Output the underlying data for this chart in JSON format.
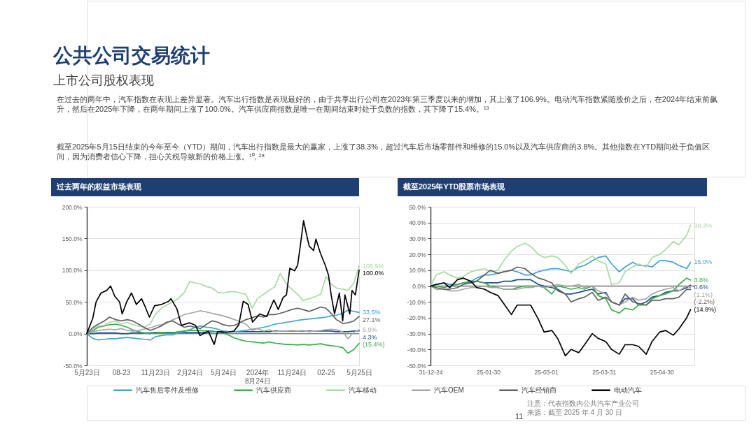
{
  "chart_data": [
    {
      "type": "other",
      "title": "公共公司交易统计",
      "subtitle": "上市公司股权表现",
      "annotations": [
        "在过去的两年中，汽车指数在表现上差异显著。汽车出行指数是表现最好的，由于共享出行公司在2023年第三季度以来的增加，其上涨了106.9%。电动汽车指数紧随股价之后，在2024年结束前飙升，然后在2025年下降，在两年期间上涨了100.0%。汽车供应商指数是唯一在期间结束时处于负数的指数，其下降了15.4%。¹³",
        "截至2025年5月15日结束的今年至今（YTD）期间，汽车出行指数是最大的赢家，上涨了38.3%，超过汽车后市场零部件和维修的15.0%以及汽车供应商的3.8%。其他指数在YTD期间处于负值区间，因为消费者信心下降，担心关税导致新的价格上涨。¹⁰, ²⁸"
      ]
    },
    {
      "type": "line",
      "title": "过去两年的权益市场表现",
      "legend": "bottom",
      "grid": "y",
      "marker": "none",
      "line_style": "solid",
      "x": [
        "2023-05-15",
        "2023-06-01",
        "2023-06-15",
        "2023-07-01",
        "2023-07-15",
        "2023-08-01",
        "2023-08-15",
        "2023-09-01",
        "2023-09-15",
        "2023-10-01",
        "2023-10-15",
        "2023-11-01",
        "2023-11-15",
        "2023-12-01",
        "2023-12-15",
        "2024-01-01",
        "2024-01-15",
        "2024-02-01",
        "2024-02-15",
        "2024-03-01",
        "2024-03-15",
        "2024-04-01",
        "2024-04-15",
        "2024-05-01",
        "2024-05-15",
        "2024-06-01",
        "2024-06-15",
        "2024-07-01",
        "2024-07-15",
        "2024-08-01",
        "2024-08-15",
        "2024-09-01",
        "2024-09-15",
        "2024-10-01",
        "2024-10-15",
        "2024-11-01",
        "2024-11-15",
        "2024-12-01",
        "2024-12-15",
        "2025-01-01",
        "2025-01-15",
        "2025-02-01",
        "2025-02-15",
        "2025-03-01",
        "2025-03-15",
        "2025-04-01",
        "2025-04-15",
        "2025-05-01",
        "2025-05-15"
      ],
      "xlim": [
        "2023-05-15",
        "2025-05-15"
      ],
      "xticks": [
        {
          "value": "2023-05-15",
          "label": "5月23日"
        },
        {
          "value": "2023-08-15",
          "label": "08-23"
        },
        {
          "value": "2023-11-15",
          "label": "11月23日"
        },
        {
          "value": "2024-02-15",
          "label": "2月24日"
        },
        {
          "value": "2024-05-15",
          "label": "5月24日"
        },
        {
          "value": "2024-08-15",
          "label": "2024年8月24日"
        },
        {
          "value": "2024-11-15",
          "label": "11月24日"
        },
        {
          "value": "2025-02-15",
          "label": "02-25"
        },
        {
          "value": "2025-05-15",
          "label": "5月25日"
        }
      ],
      "ylim": [
        -50,
        200
      ],
      "yticks": [
        {
          "value": -50,
          "label": "-50.0%"
        },
        {
          "value": 0,
          "label": "0.0%"
        },
        {
          "value": 50,
          "label": "50.0%"
        },
        {
          "value": 100,
          "label": "100.0%"
        },
        {
          "value": 150,
          "label": "150.0%"
        },
        {
          "value": 200,
          "label": "200.0%"
        }
      ],
      "ref_lines": [
        {
          "axis": "y",
          "value": 0,
          "color": "#808080"
        }
      ],
      "series": [
        {
          "color": "#1f4e8c",
          "values": [
            0,
            0,
            1,
            1,
            1,
            1,
            0,
            0,
            1,
            1,
            1,
            1,
            2,
            2,
            2,
            2,
            2,
            2,
            2,
            2,
            2,
            2,
            3,
            3,
            3,
            3,
            3,
            3,
            3,
            3,
            3,
            3,
            3,
            4,
            4,
            4,
            4,
            4,
            4,
            4,
            4,
            4,
            4,
            4,
            3,
            3,
            3,
            4,
            4.3
          ],
          "value_labels": [
            null,
            null,
            null,
            null,
            null,
            null,
            null,
            null,
            null,
            null,
            null,
            null,
            null,
            null,
            null,
            null,
            null,
            null,
            null,
            null,
            null,
            null,
            null,
            null,
            null,
            null,
            null,
            null,
            null,
            null,
            null,
            null,
            null,
            null,
            null,
            null,
            null,
            null,
            null,
            null,
            null,
            null,
            null,
            null,
            null,
            null,
            null,
            null,
            "4.3%"
          ]
        },
        {
          "name": "汽车售后零件及维修",
          "color": "#41a1d9",
          "values": [
            0,
            -8,
            -10,
            -9,
            -8,
            -8,
            -7,
            -6,
            -7,
            -8,
            -9,
            -10,
            -5,
            -3,
            -2,
            -2,
            1,
            4,
            6,
            10,
            12,
            10,
            9,
            7,
            4,
            3,
            3,
            4,
            5,
            7,
            8,
            10,
            12,
            15,
            16,
            18,
            19,
            21,
            22,
            23,
            24,
            25,
            26,
            28,
            29,
            32,
            37,
            35,
            33.5
          ],
          "value_labels": [
            null,
            null,
            null,
            null,
            null,
            null,
            null,
            null,
            null,
            null,
            null,
            null,
            null,
            null,
            null,
            null,
            null,
            null,
            null,
            null,
            null,
            null,
            null,
            null,
            null,
            null,
            null,
            null,
            null,
            null,
            null,
            null,
            null,
            null,
            null,
            null,
            null,
            null,
            null,
            null,
            null,
            null,
            null,
            null,
            null,
            null,
            null,
            null,
            "33.5%"
          ]
        },
        {
          "name": "汽车供应商",
          "color": "#3cb04a",
          "values": [
            0,
            5,
            10,
            12,
            14,
            15,
            13,
            10,
            6,
            3,
            1,
            0,
            1,
            2,
            1,
            1,
            3,
            4,
            5,
            5,
            5,
            4,
            4,
            3,
            1,
            -3,
            -7,
            -10,
            -12,
            -13,
            -14,
            -15,
            -13,
            -15,
            -16,
            -17,
            -17,
            -18,
            -17,
            -18,
            -17,
            -16,
            -18,
            -19,
            -20,
            -22,
            -31,
            -25,
            -15.4
          ],
          "value_labels": [
            null,
            null,
            null,
            null,
            null,
            null,
            null,
            null,
            null,
            null,
            null,
            null,
            null,
            null,
            null,
            null,
            null,
            null,
            null,
            null,
            null,
            null,
            null,
            null,
            null,
            null,
            null,
            null,
            null,
            null,
            null,
            null,
            null,
            null,
            null,
            null,
            null,
            null,
            null,
            null,
            null,
            null,
            null,
            null,
            null,
            null,
            null,
            null,
            "(15.4%)"
          ]
        },
        {
          "name": "汽车移动",
          "color": "#a8dba4",
          "values": [
            0,
            8,
            12,
            13,
            18,
            20,
            15,
            18,
            14,
            12,
            10,
            15,
            30,
            40,
            45,
            50,
            55,
            65,
            82,
            80,
            78,
            74,
            72,
            65,
            64,
            66,
            66,
            64,
            62,
            40,
            55,
            62,
            68,
            74,
            95,
            78,
            70,
            62,
            52,
            55,
            58,
            62,
            90,
            78,
            72,
            70,
            68,
            80,
            106.9
          ],
          "value_labels": [
            null,
            null,
            null,
            null,
            null,
            null,
            null,
            null,
            null,
            null,
            null,
            null,
            null,
            null,
            null,
            null,
            null,
            null,
            null,
            null,
            null,
            null,
            null,
            null,
            null,
            null,
            null,
            null,
            null,
            null,
            null,
            null,
            null,
            null,
            null,
            null,
            null,
            null,
            null,
            null,
            null,
            null,
            null,
            null,
            null,
            null,
            null,
            null,
            "106.9%"
          ]
        },
        {
          "name": "汽车OEM",
          "color": "#a6a6a6",
          "values": [
            0,
            3,
            5,
            6,
            7,
            6,
            8,
            5,
            4,
            5,
            7,
            9,
            12,
            14,
            16,
            22,
            25,
            30,
            32,
            34,
            36,
            34,
            32,
            30,
            28,
            25,
            22,
            18,
            15,
            5,
            8,
            4,
            6,
            3,
            4,
            4,
            5,
            4,
            5,
            3,
            4,
            5,
            6,
            7,
            6,
            3,
            -8,
            2,
            5.9
          ],
          "value_labels": [
            null,
            null,
            null,
            null,
            null,
            null,
            null,
            null,
            null,
            null,
            null,
            null,
            null,
            null,
            null,
            null,
            null,
            null,
            null,
            null,
            null,
            null,
            null,
            null,
            null,
            null,
            null,
            null,
            null,
            null,
            null,
            null,
            null,
            null,
            null,
            null,
            null,
            null,
            null,
            null,
            null,
            null,
            null,
            null,
            null,
            null,
            null,
            null,
            "5.9%"
          ]
        },
        {
          "name": "汽车经销商",
          "color": "#626262",
          "values": [
            0,
            10,
            15,
            20,
            26,
            22,
            20,
            22,
            20,
            15,
            10,
            5,
            8,
            12,
            18,
            20,
            15,
            10,
            12,
            10,
            8,
            15,
            20,
            18,
            14,
            12,
            13,
            18,
            22,
            25,
            28,
            26,
            30,
            30,
            32,
            35,
            38,
            40,
            38,
            35,
            38,
            42,
            40,
            32,
            22,
            16,
            17,
            20,
            27.1
          ],
          "value_labels": [
            null,
            null,
            null,
            null,
            null,
            null,
            null,
            null,
            null,
            null,
            null,
            null,
            null,
            null,
            null,
            null,
            null,
            null,
            null,
            null,
            null,
            null,
            null,
            null,
            null,
            null,
            null,
            null,
            null,
            null,
            null,
            null,
            null,
            null,
            null,
            null,
            null,
            null,
            null,
            null,
            null,
            null,
            null,
            null,
            null,
            null,
            null,
            null,
            "27.1%"
          ]
        },
        {
          "name": "电动汽车",
          "color": "#000000",
          "x": [
            "2023-05-15",
            "2023-05-31",
            "2023-06-09",
            "2023-06-22",
            "2023-07-07",
            "2023-07-18",
            "2023-07-29",
            "2023-08-11",
            "2023-08-18",
            "2023-08-30",
            "2023-09-12",
            "2023-09-25",
            "2023-10-09",
            "2023-10-19",
            "2023-10-30",
            "2023-11-13",
            "2023-12-02",
            "2023-12-21",
            "2023-12-27",
            "2024-01-12",
            "2024-01-24",
            "2024-02-15",
            "2024-03-02",
            "2024-03-14",
            "2024-04-05",
            "2024-04-21",
            "2024-04-30",
            "2024-05-25",
            "2024-06-13",
            "2024-06-26",
            "2024-07-08",
            "2024-07-21",
            "2024-08-02",
            "2024-08-21",
            "2024-09-09",
            "2024-09-28",
            "2024-10-10",
            "2024-10-23",
            "2024-11-01",
            "2024-11-10",
            "2024-11-23",
            "2024-12-01",
            "2024-12-09",
            "2024-12-17",
            "2024-12-25",
            "2025-01-01",
            "2025-01-13",
            "2025-01-19",
            "2025-01-31",
            "2025-02-13",
            "2025-02-22",
            "2025-03-01",
            "2025-03-10",
            "2025-03-23",
            "2025-04-01",
            "2025-04-07",
            "2025-04-20",
            "2025-04-26",
            "2025-05-05",
            "2025-05-15"
          ],
          "values": [
            0,
            24,
            50,
            64,
            68,
            75,
            59,
            50,
            31,
            50,
            64,
            46,
            55,
            42,
            26,
            44,
            46,
            51,
            55,
            39,
            13,
            17,
            13,
            -3,
            4,
            -17,
            3,
            2,
            4,
            14,
            51,
            46,
            18,
            31,
            27,
            53,
            38,
            57,
            61,
            103,
            99,
            108,
            142,
            178,
            156,
            138,
            131,
            149,
            127,
            108,
            92,
            61,
            31,
            64,
            20,
            61,
            31,
            68,
            61,
            100.0
          ],
          "value_labels": [
            null,
            null,
            null,
            null,
            null,
            null,
            null,
            null,
            null,
            null,
            null,
            null,
            null,
            null,
            null,
            null,
            null,
            null,
            null,
            null,
            null,
            null,
            null,
            null,
            null,
            null,
            null,
            null,
            null,
            null,
            null,
            null,
            null,
            null,
            null,
            null,
            null,
            null,
            null,
            null,
            null,
            null,
            null,
            null,
            null,
            null,
            null,
            null,
            null,
            null,
            null,
            null,
            null,
            null,
            null,
            null,
            null,
            null,
            null,
            "100.0%"
          ]
        }
      ]
    },
    {
      "type": "line",
      "title": "截至2025年YTD股票市场表现",
      "grid": "y",
      "marker": "none",
      "line_style": "solid",
      "x": [
        "2024-12-31",
        "2025-01-03",
        "2025-01-07",
        "2025-01-10",
        "2025-01-14",
        "2025-01-17",
        "2025-01-21",
        "2025-01-24",
        "2025-01-28",
        "2025-01-31",
        "2025-02-04",
        "2025-02-07",
        "2025-02-11",
        "2025-02-14",
        "2025-02-18",
        "2025-02-21",
        "2025-02-25",
        "2025-02-28",
        "2025-03-04",
        "2025-03-07",
        "2025-03-11",
        "2025-03-14",
        "2025-03-18",
        "2025-03-21",
        "2025-03-25",
        "2025-03-28",
        "2025-04-01",
        "2025-04-04",
        "2025-04-08",
        "2025-04-11",
        "2025-04-15",
        "2025-04-18",
        "2025-04-22",
        "2025-04-25",
        "2025-04-29",
        "2025-05-02",
        "2025-05-06",
        "2025-05-09",
        "2025-05-13",
        "2025-05-15"
      ],
      "xlim": [
        "2024-12-31",
        "2025-05-17"
      ],
      "xticks": [
        {
          "value": "2024-12-31",
          "label": "31-12-24"
        },
        {
          "value": "2025-01-30",
          "label": "25-01-30"
        },
        {
          "value": "2025-03-01",
          "label": "25-03-01"
        },
        {
          "value": "2025-03-31",
          "label": "25-03-31"
        },
        {
          "value": "2025-04-30",
          "label": "25-04-30"
        }
      ],
      "ylim": [
        -50,
        50
      ],
      "yticks": [
        {
          "value": -50,
          "label": "-50.0%"
        },
        {
          "value": -40,
          "label": "-40.0%"
        },
        {
          "value": -30,
          "label": "-30.0%"
        },
        {
          "value": -20,
          "label": "-20.0%"
        },
        {
          "value": -10,
          "label": "-10.0%"
        },
        {
          "value": 0,
          "label": "0.0%"
        },
        {
          "value": 10,
          "label": "10.0%"
        },
        {
          "value": 20,
          "label": "20.0%"
        },
        {
          "value": 30,
          "label": "30.0%"
        },
        {
          "value": 40,
          "label": "40.0%"
        },
        {
          "value": 50,
          "label": "50.0%"
        }
      ],
      "ref_lines": [
        {
          "axis": "y",
          "value": 0,
          "color": "#808080"
        }
      ],
      "series": [
        {
          "color": "#1f4e8c",
          "values": [
            0,
            1,
            2,
            1,
            1,
            2,
            2,
            3,
            2,
            2,
            2,
            3,
            3,
            4,
            4,
            4,
            1,
            0,
            -1,
            -2,
            -5,
            -5,
            -4,
            -3,
            -2,
            -5,
            -4,
            -10,
            -12,
            -8,
            -8,
            -12,
            -10,
            -7,
            -6,
            -4,
            -3,
            -3,
            -1,
            0.6
          ],
          "value_labels": [
            null,
            null,
            null,
            null,
            null,
            null,
            null,
            null,
            null,
            null,
            null,
            null,
            null,
            null,
            null,
            null,
            null,
            null,
            null,
            null,
            null,
            null,
            null,
            null,
            null,
            null,
            null,
            null,
            null,
            null,
            null,
            null,
            null,
            null,
            null,
            null,
            null,
            null,
            null,
            "0.6%"
          ]
        },
        {
          "name": "汽车售后零件及维修",
          "color": "#41a1d9",
          "values": [
            0,
            1,
            2,
            1,
            1,
            2,
            3,
            5,
            7,
            7,
            8,
            9,
            10,
            9,
            7,
            7,
            9,
            10,
            11,
            11,
            10,
            9,
            12,
            13,
            16,
            18,
            19,
            14,
            9,
            12,
            15,
            13,
            13,
            12,
            16,
            16,
            15,
            13,
            11,
            15.0
          ],
          "value_labels": [
            null,
            null,
            null,
            null,
            null,
            null,
            null,
            null,
            null,
            null,
            null,
            null,
            null,
            null,
            null,
            null,
            null,
            null,
            null,
            null,
            null,
            null,
            null,
            null,
            null,
            null,
            null,
            null,
            null,
            null,
            null,
            null,
            null,
            null,
            null,
            null,
            null,
            null,
            null,
            "15.0%"
          ]
        },
        {
          "name": "汽车供应商",
          "color": "#3cb04a",
          "values": [
            0,
            0,
            -1,
            0,
            1,
            2,
            3,
            3,
            2,
            0,
            -1,
            -2,
            -2,
            -1,
            0,
            0,
            0,
            -1,
            -5,
            0,
            -1,
            -2,
            -1,
            -2,
            0,
            -6,
            -8,
            -15,
            -17,
            -14,
            -15,
            -12,
            -12,
            -8,
            -6,
            -5,
            -3,
            1,
            5,
            3.8
          ],
          "value_labels": [
            null,
            null,
            null,
            null,
            null,
            null,
            null,
            null,
            null,
            null,
            null,
            null,
            null,
            null,
            null,
            null,
            null,
            null,
            null,
            null,
            null,
            null,
            null,
            null,
            null,
            null,
            null,
            null,
            null,
            null,
            null,
            null,
            null,
            null,
            null,
            null,
            null,
            null,
            null,
            "3.8%"
          ]
        },
        {
          "name": "汽车移动",
          "color": "#a8dba4",
          "values": [
            0,
            7,
            9,
            7,
            5,
            6,
            9,
            10,
            11,
            9,
            10,
            16,
            22,
            25,
            27,
            25,
            20,
            18,
            19,
            18,
            13,
            8,
            14,
            16,
            19,
            16,
            14,
            1,
            2,
            9,
            12,
            14,
            12,
            18,
            20,
            23,
            28,
            26,
            32,
            38.3
          ],
          "value_labels": [
            null,
            null,
            null,
            null,
            null,
            null,
            null,
            null,
            null,
            null,
            null,
            null,
            null,
            null,
            null,
            null,
            null,
            null,
            null,
            null,
            null,
            null,
            null,
            null,
            null,
            null,
            null,
            null,
            null,
            null,
            null,
            null,
            null,
            null,
            null,
            null,
            null,
            null,
            null,
            "38.3%"
          ]
        },
        {
          "name": "汽车OEM",
          "color": "#a6a6a6",
          "values": [
            0,
            -2,
            -2,
            -3,
            -3,
            -2,
            -1,
            -1,
            0,
            -1,
            -1,
            -2,
            -2,
            -2,
            -1,
            -1,
            0,
            -1,
            0,
            1,
            0,
            0,
            1,
            -1,
            0,
            -3,
            -5,
            -10,
            -12,
            -10,
            -7,
            -9,
            -8,
            -5,
            -3,
            -2,
            -1,
            -3,
            0,
            -1.1
          ],
          "value_labels": [
            null,
            null,
            null,
            null,
            null,
            null,
            null,
            null,
            null,
            null,
            null,
            null,
            null,
            null,
            null,
            null,
            null,
            null,
            null,
            null,
            null,
            null,
            null,
            null,
            null,
            null,
            null,
            null,
            null,
            null,
            null,
            null,
            null,
            null,
            null,
            null,
            null,
            null,
            null,
            "(1.1%)"
          ]
        },
        {
          "name": "汽车经销商",
          "color": "#626262",
          "values": [
            0,
            -1,
            -2,
            -2,
            -1,
            1,
            2,
            3,
            7,
            10,
            8,
            9,
            10,
            12,
            11,
            8,
            5,
            4,
            2,
            -3,
            -5,
            -10,
            -8,
            -7,
            -4,
            -9,
            -7,
            -10,
            -12,
            -5,
            -10,
            -11,
            -12,
            -9,
            -9,
            -8,
            -8,
            -7,
            -2,
            -2.2
          ],
          "value_labels": [
            null,
            null,
            null,
            null,
            null,
            null,
            null,
            null,
            null,
            null,
            null,
            null,
            null,
            null,
            null,
            null,
            null,
            null,
            null,
            null,
            null,
            null,
            null,
            null,
            null,
            null,
            null,
            null,
            null,
            null,
            null,
            null,
            null,
            null,
            null,
            null,
            null,
            null,
            null,
            "(-2.2%)"
          ]
        },
        {
          "name": "电动汽车",
          "color": "#000000",
          "values": [
            0,
            1,
            2,
            -1,
            4,
            5,
            3,
            -1,
            -2,
            -4,
            -6,
            -11,
            -18,
            -12,
            -12,
            -12,
            -21,
            -29,
            -28,
            -33,
            -44,
            -40,
            -42,
            -37,
            -30,
            -33,
            -35,
            -40,
            -43,
            -37,
            -37,
            -38,
            -43,
            -35,
            -29,
            -28,
            -31,
            -27,
            -20,
            -14.8
          ],
          "value_labels": [
            null,
            null,
            null,
            null,
            null,
            null,
            null,
            null,
            null,
            null,
            null,
            null,
            null,
            null,
            null,
            null,
            null,
            null,
            null,
            null,
            null,
            null,
            null,
            null,
            null,
            null,
            null,
            null,
            null,
            null,
            null,
            null,
            null,
            null,
            null,
            null,
            null,
            null,
            null,
            "(14.8%)"
          ]
        }
      ]
    },
    {
      "type": "other",
      "annotations": [
        "11",
        "注意：代表指数内公共汽车产业公司",
        "来源：截至 2025 年 4 月 30 日"
      ]
    }
  ]
}
